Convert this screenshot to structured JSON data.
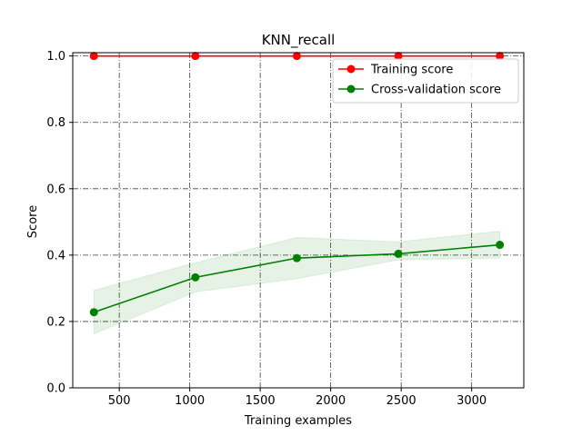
{
  "chart_data": {
    "type": "line",
    "title": "KNN_recall",
    "xlabel": "Training examples",
    "ylabel": "Score",
    "xlim": [
      170,
      3370
    ],
    "ylim": [
      0.0,
      1.01
    ],
    "x_ticks": [
      500,
      1000,
      1500,
      2000,
      2500,
      3000
    ],
    "y_ticks": [
      0.0,
      0.2,
      0.4,
      0.6,
      0.8,
      1.0
    ],
    "grid": true,
    "legend_position": "upper right",
    "x": [
      320,
      1040,
      1760,
      2480,
      3200
    ],
    "series": [
      {
        "name": "Training score",
        "color": "#ff0000",
        "values": [
          1.0,
          1.0,
          1.0,
          1.0,
          1.0
        ],
        "band_lower": [
          1.0,
          1.0,
          1.0,
          1.0,
          1.0
        ],
        "band_upper": [
          1.0,
          1.0,
          1.0,
          1.0,
          1.0
        ]
      },
      {
        "name": "Cross-validation score",
        "color": "#008000",
        "values": [
          0.228,
          0.333,
          0.391,
          0.404,
          0.431
        ],
        "band_lower": [
          0.163,
          0.289,
          0.329,
          0.386,
          0.391
        ],
        "band_upper": [
          0.294,
          0.377,
          0.453,
          0.44,
          0.472
        ]
      }
    ]
  }
}
